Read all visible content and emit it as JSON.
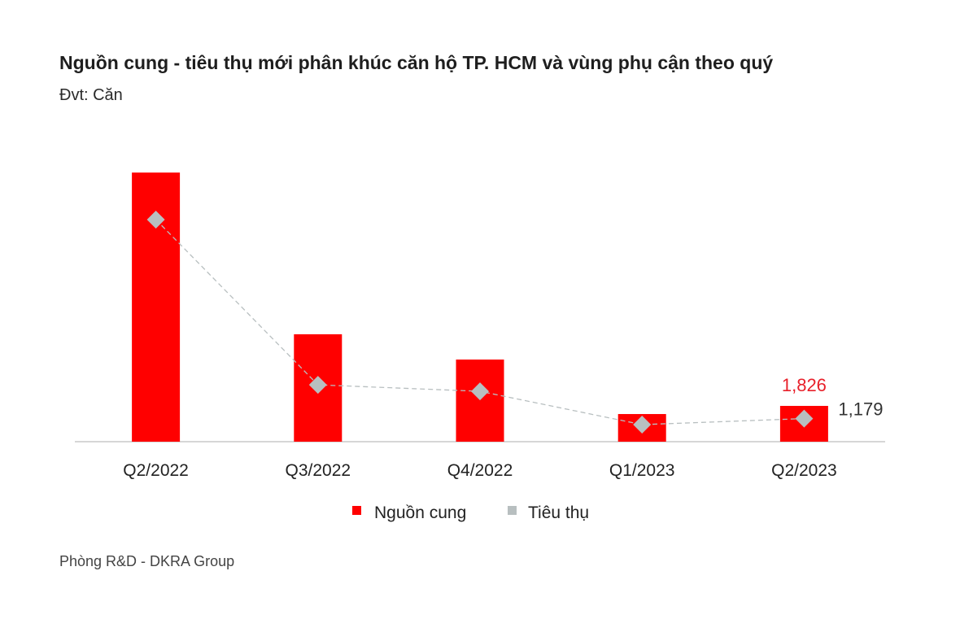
{
  "chart_data": {
    "type": "bar",
    "title": "Nguồn cung - tiêu thụ mới phân khúc căn hộ TP. HCM và vùng phụ cận theo quý",
    "subtitle": "Đvt: Căn",
    "categories": [
      "Q2/2022",
      "Q3/2022",
      "Q4/2022",
      "Q1/2023",
      "Q2/2023"
    ],
    "series": [
      {
        "name": "Nguồn cung",
        "kind": "bar",
        "color": "#ff0000",
        "values": [
          13730,
          5480,
          4190,
          1410,
          1826
        ]
      },
      {
        "name": "Tiêu thụ",
        "kind": "line-marker",
        "marker": "diamond",
        "line": "dashed",
        "color": "#b8bfc0",
        "values": [
          11330,
          2900,
          2570,
          870,
          1179
        ]
      }
    ],
    "data_labels": [
      {
        "series": "Nguồn cung",
        "category": "Q2/2023",
        "text": "1,826",
        "color": "#e8202a"
      },
      {
        "series": "Tiêu thụ",
        "category": "Q2/2023",
        "text": "1,179",
        "color": "#333333"
      }
    ],
    "ylim": [
      0,
      14000
    ],
    "y_axis_visible": false,
    "grid": false,
    "legend_position": "bottom"
  },
  "source": "Phòng R&D - DKRA Group"
}
